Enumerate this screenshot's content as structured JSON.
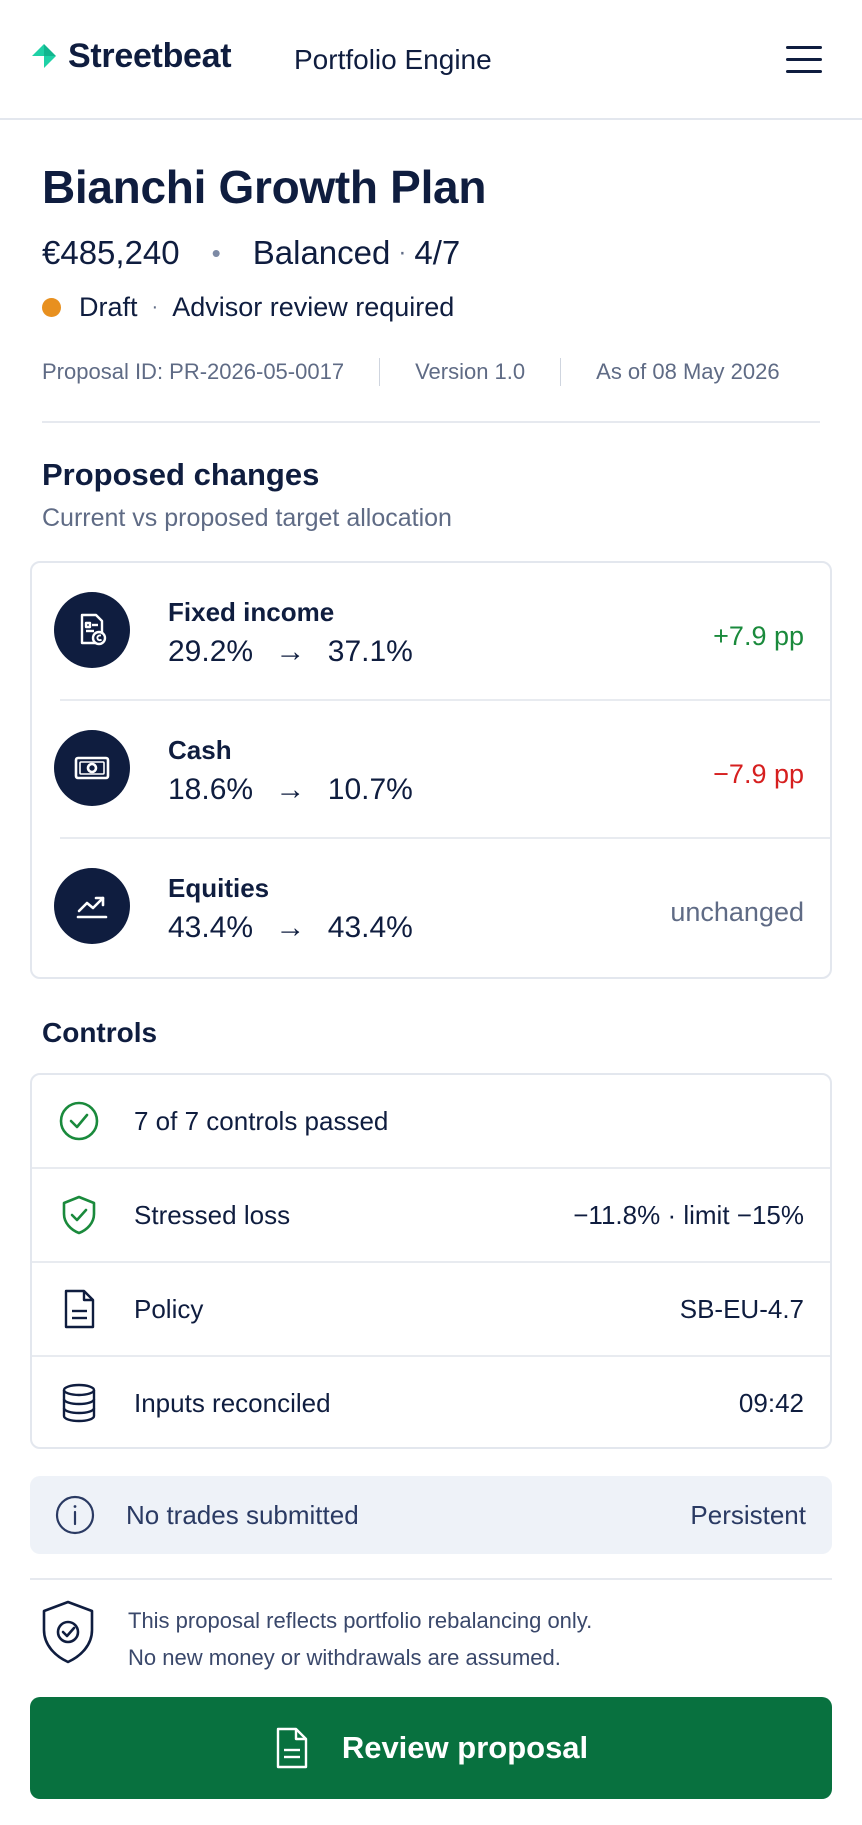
{
  "header": {
    "brand": "Streetbeat",
    "product": "Portfolio Engine",
    "menu_icon": "hamburger-menu-icon",
    "brand_color": "#1fd1a6"
  },
  "plan": {
    "title": "Bianchi Growth Plan",
    "value": "€485,240",
    "profile": "Balanced",
    "risk_level": "4/7",
    "status": "Draft",
    "status_color": "#e8901f",
    "status_note": "Advisor review required",
    "proposal_id": "Proposal ID: PR-2026-05-0017",
    "version": "Version 1.0",
    "as_of": "As of 08 May 2026"
  },
  "proposed_changes": {
    "title": "Proposed changes",
    "subtitle": "Current vs proposed target allocation",
    "rows": [
      {
        "name": "Fixed income",
        "current": "29.2%",
        "proposed": "37.1%",
        "delta": "+7.9 pp",
        "tone": "pos",
        "icon": "fixed-income-document-icon"
      },
      {
        "name": "Cash",
        "current": "18.6%",
        "proposed": "10.7%",
        "delta": "−7.9 pp",
        "tone": "neg",
        "icon": "cash-banknote-icon"
      },
      {
        "name": "Equities",
        "current": "43.4%",
        "proposed": "43.4%",
        "delta": "unchanged",
        "tone": "neu",
        "icon": "trending-up-chart-icon"
      }
    ],
    "arrow": "→",
    "colors": {
      "positive": "#1a8a3c",
      "negative": "#d61f1f"
    }
  },
  "controls": {
    "title": "Controls",
    "rows": [
      {
        "label": "7 of 7 controls passed",
        "value": "",
        "icon": "check-circle-icon"
      },
      {
        "label": "Stressed loss",
        "value": "−11.8% · limit −15%",
        "icon": "shield-check-icon"
      },
      {
        "label": "Policy",
        "value": "SB-EU-4.7",
        "icon": "policy-document-icon"
      },
      {
        "label": "Inputs reconciled",
        "value": "09:42",
        "icon": "database-icon"
      }
    ]
  },
  "notice": {
    "text": "No trades submitted",
    "value": "Persistent",
    "icon": "info-icon"
  },
  "disclaimer": {
    "line1": "This proposal reflects portfolio rebalancing only.",
    "line2": "No new money or withdrawals are assumed.",
    "icon": "shield-badge-icon"
  },
  "cta": {
    "label": "Review proposal",
    "icon": "document-icon",
    "color": "#08713f"
  }
}
